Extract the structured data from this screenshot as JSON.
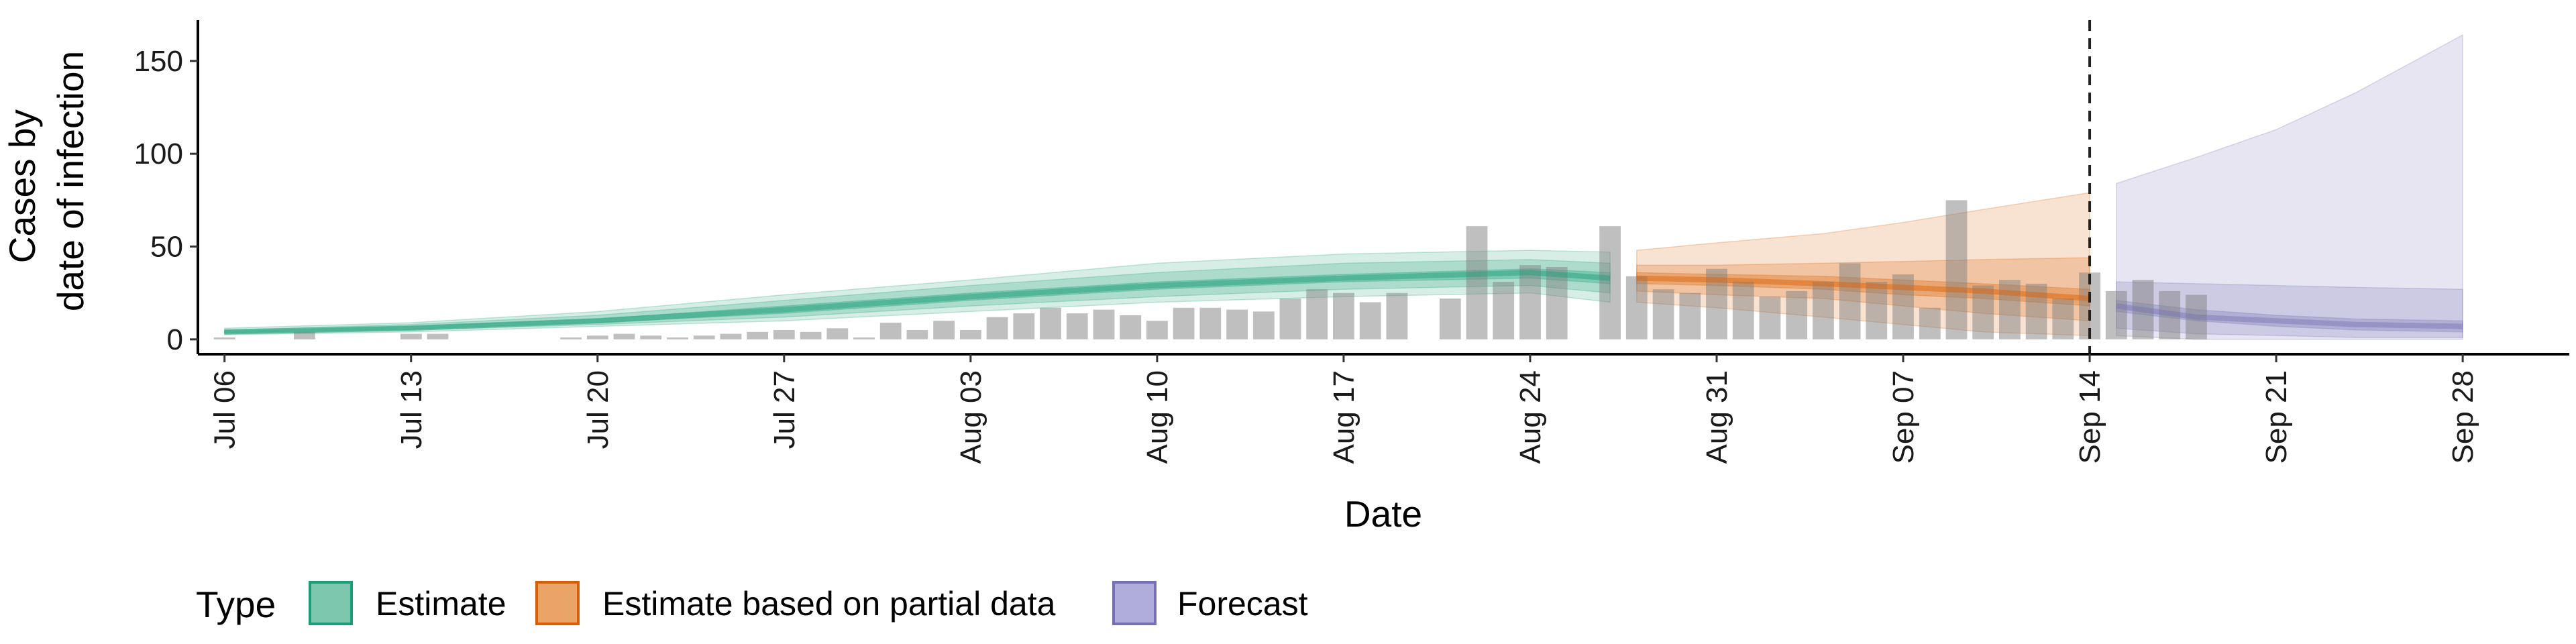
{
  "chart_data": {
    "type": "area",
    "xlabel": "Date",
    "ylabel": [
      "Cases by",
      "date of infection"
    ],
    "ylim": [
      -8,
      172
    ],
    "xlim": [
      "2020-07-05",
      "2020-10-02"
    ],
    "y_ticks": [
      0,
      50,
      100,
      150
    ],
    "x_ticks": [
      {
        "date": "2020-07-06",
        "label": "Jul 06"
      },
      {
        "date": "2020-07-13",
        "label": "Jul 13"
      },
      {
        "date": "2020-07-20",
        "label": "Jul 20"
      },
      {
        "date": "2020-07-27",
        "label": "Jul 27"
      },
      {
        "date": "2020-08-03",
        "label": "Aug 03"
      },
      {
        "date": "2020-08-10",
        "label": "Aug 10"
      },
      {
        "date": "2020-08-17",
        "label": "Aug 17"
      },
      {
        "date": "2020-08-24",
        "label": "Aug 24"
      },
      {
        "date": "2020-08-31",
        "label": "Aug 31"
      },
      {
        "date": "2020-09-07",
        "label": "Sep 07"
      },
      {
        "date": "2020-09-14",
        "label": "Sep 14"
      },
      {
        "date": "2020-09-21",
        "label": "Sep 21"
      },
      {
        "date": "2020-09-28",
        "label": "Sep 28"
      }
    ],
    "forecast_line_date": "2020-09-14",
    "grid": false,
    "legend": {
      "title": "Type",
      "position": "bottom",
      "entries": [
        {
          "label": "Estimate",
          "color": "#1b9e77"
        },
        {
          "label": "Estimate based on partial data",
          "color": "#d95f02"
        },
        {
          "label": "Forecast",
          "color": "#7570b3"
        }
      ]
    },
    "bars": {
      "start_date": "2020-07-06",
      "values": [
        1,
        0,
        0,
        4,
        0,
        0,
        0,
        3,
        3,
        0,
        0,
        0,
        0,
        1,
        2,
        3,
        2,
        1,
        2,
        3,
        4,
        5,
        4,
        6,
        1,
        9,
        5,
        10,
        5,
        12,
        14,
        17,
        14,
        16,
        13,
        10,
        17,
        17,
        16,
        15,
        22,
        27,
        25,
        20,
        25,
        0,
        22,
        61,
        31,
        40,
        39,
        0,
        61,
        34,
        27,
        25,
        38,
        31,
        23,
        26,
        31,
        41,
        31,
        35,
        17,
        75,
        29,
        32,
        30,
        22,
        36,
        26,
        32,
        26,
        24,
        0,
        0,
        0,
        0,
        0,
        0,
        0,
        0,
        0,
        0,
        0,
        0,
        0,
        0
      ]
    },
    "series": [
      {
        "name": "Estimate",
        "color": "#1b9e77",
        "dates": [
          "2020-07-06",
          "2020-07-13",
          "2020-07-20",
          "2020-07-27",
          "2020-08-03",
          "2020-08-10",
          "2020-08-17",
          "2020-08-24",
          "2020-08-27"
        ],
        "median": [
          4,
          6,
          10,
          16,
          23,
          29,
          33,
          36,
          33
        ],
        "lower_50": [
          3.5,
          5.5,
          9,
          14,
          21,
          27,
          31,
          33,
          30
        ],
        "upper_50": [
          4.5,
          7,
          11,
          18,
          25,
          31,
          35,
          38,
          36
        ],
        "lower_90": [
          3,
          5,
          8,
          12,
          18,
          23,
          27,
          29,
          25
        ],
        "upper_90": [
          5,
          8,
          13,
          21,
          29,
          36,
          41,
          43,
          41
        ],
        "lower_outer": [
          2.5,
          4,
          7,
          10,
          15,
          20,
          23,
          25,
          20
        ],
        "upper_outer": [
          6,
          9,
          15,
          24,
          32,
          41,
          46,
          48,
          47
        ]
      },
      {
        "name": "Estimate based on partial data",
        "color": "#d95f02",
        "dates": [
          "2020-08-28",
          "2020-08-31",
          "2020-09-04",
          "2020-09-07",
          "2020-09-10",
          "2020-09-14"
        ],
        "median": [
          33,
          32,
          30,
          28,
          26,
          22
        ],
        "lower_50": [
          30,
          29,
          27,
          24,
          22,
          18
        ],
        "upper_50": [
          36,
          35,
          34,
          32,
          30,
          27
        ],
        "lower_90": [
          26,
          24,
          22,
          18,
          14,
          10
        ],
        "upper_90": [
          40,
          40,
          41,
          42,
          43,
          44
        ],
        "lower_outer": [
          20,
          17,
          12,
          8,
          4,
          2
        ],
        "upper_outer": [
          48,
          52,
          57,
          63,
          70,
          79
        ]
      },
      {
        "name": "Forecast",
        "color": "#7570b3",
        "dates": [
          "2020-09-15",
          "2020-09-18",
          "2020-09-21",
          "2020-09-24",
          "2020-09-28"
        ],
        "median": [
          18,
          12,
          10,
          8,
          7
        ],
        "lower_50": [
          15,
          10,
          7,
          5,
          4
        ],
        "upper_50": [
          21,
          16,
          13,
          11,
          10
        ],
        "lower_90": [
          6,
          3,
          2,
          1,
          1
        ],
        "upper_90": [
          31,
          30,
          29,
          28,
          27
        ],
        "lower_outer": [
          2,
          0,
          0,
          0,
          0
        ],
        "upper_outer": [
          84,
          98,
          113,
          133,
          164
        ]
      }
    ]
  }
}
